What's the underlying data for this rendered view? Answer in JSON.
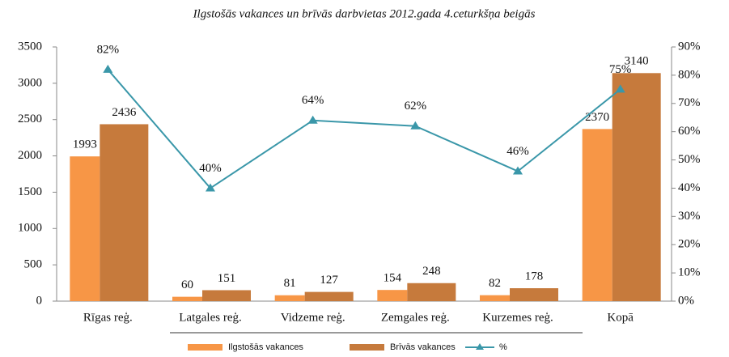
{
  "chart_data": {
    "type": "bar_line",
    "title": "Ilgstošās vakances un brīvās darbvietas 2012.gada 4.ceturkšņa beigās",
    "categories": [
      "Rīgas reģ.",
      "Latgales reģ.",
      "Vidzeme reģ.",
      "Zemgales reģ.",
      "Kurzemes reģ.",
      "Kopā"
    ],
    "series": [
      {
        "name": "Ilgstošās vakances",
        "type": "bar",
        "color": "#f79646",
        "values": [
          1993,
          60,
          81,
          154,
          82,
          2370
        ]
      },
      {
        "name": "Brīvās vakances",
        "type": "bar",
        "color": "#c67a3c",
        "values": [
          2436,
          151,
          127,
          248,
          178,
          3140
        ]
      },
      {
        "name": "%",
        "type": "line",
        "axis": "y2",
        "color": "#3a97a9",
        "values": [
          82,
          40,
          64,
          62,
          46,
          75
        ],
        "value_labels": [
          "82%",
          "40%",
          "64%",
          "62%",
          "46%",
          "75%"
        ]
      }
    ],
    "ylim": [
      0,
      3500
    ],
    "yticks": [
      0,
      500,
      1000,
      1500,
      2000,
      2500,
      3000,
      3500
    ],
    "y2lim": [
      0,
      90
    ],
    "y2ticks": [
      {
        "value": 0,
        "label": "0%"
      },
      {
        "value": 10,
        "label": "10%"
      },
      {
        "value": 20,
        "label": "20%"
      },
      {
        "value": 30,
        "label": "30%"
      },
      {
        "value": 40,
        "label": "40%"
      },
      {
        "value": 50,
        "label": "50%"
      },
      {
        "value": 60,
        "label": "60%"
      },
      {
        "value": 70,
        "label": "70%"
      },
      {
        "value": 80,
        "label": "80%"
      },
      {
        "value": 90,
        "label": "90%"
      }
    ],
    "grid": false,
    "legend": "bottom"
  }
}
